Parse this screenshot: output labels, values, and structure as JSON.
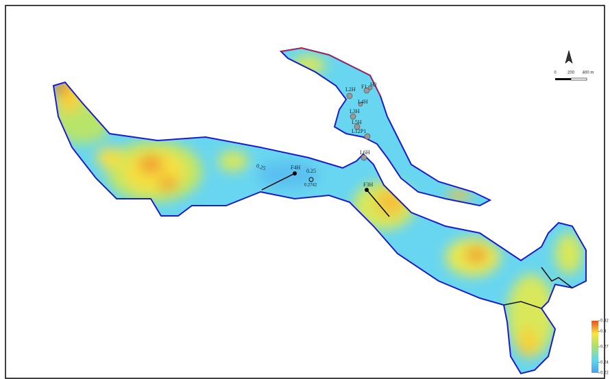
{
  "wells": [
    {
      "label": "L2H"
    },
    {
      "label": "F1"
    },
    {
      "label": "H2"
    },
    {
      "label": "L4H"
    },
    {
      "label": "L3H"
    },
    {
      "label": "L5H"
    },
    {
      "label": "L12P1"
    },
    {
      "label": "L6H"
    },
    {
      "label": "F4H"
    },
    {
      "label": "F3H"
    }
  ],
  "contour_labels": [
    "0.25",
    "0.25"
  ],
  "annotation": "0.2742",
  "scale_bar": {
    "labels": [
      "0",
      "200",
      "400 m"
    ]
  },
  "legend": {
    "ticks": [
      0.32,
      0.3,
      0.27,
      0.24,
      0.22
    ]
  }
}
